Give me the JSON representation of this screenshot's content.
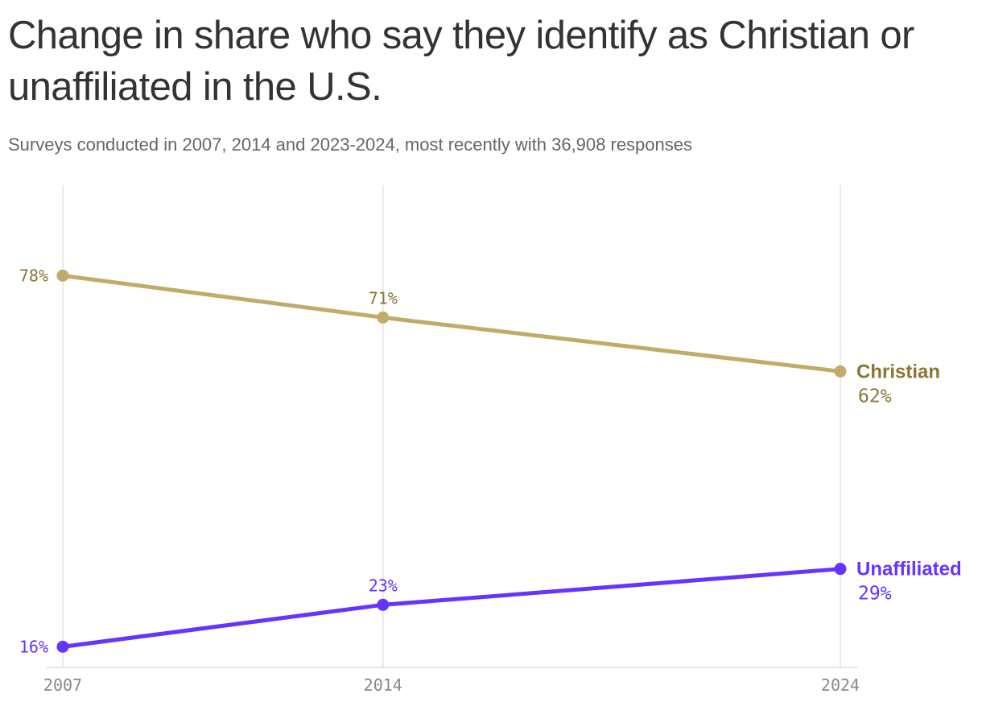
{
  "title": "Change in share who say they identify as Christian or unaffiliated in the U.S.",
  "subtitle": "Surveys conducted in 2007, 2014 and 2023-2024, most recently with 36,908 responses",
  "chart_data": {
    "type": "line",
    "x": [
      2007,
      2014,
      2024
    ],
    "x_tick_labels": [
      "2007",
      "2014",
      "2024"
    ],
    "ylim": [
      0,
      100
    ],
    "grid": "vertical",
    "series": [
      {
        "name": "Christian",
        "values": [
          78,
          71,
          62
        ],
        "value_labels": [
          "78%",
          "71%",
          "62%"
        ],
        "color": "#c2ab68",
        "label_color": "#8a7634"
      },
      {
        "name": "Unaffiliated",
        "values": [
          16,
          23,
          29
        ],
        "value_labels": [
          "16%",
          "23%",
          "29%"
        ],
        "color": "#6633ff",
        "label_color": "#6633ff"
      }
    ]
  }
}
